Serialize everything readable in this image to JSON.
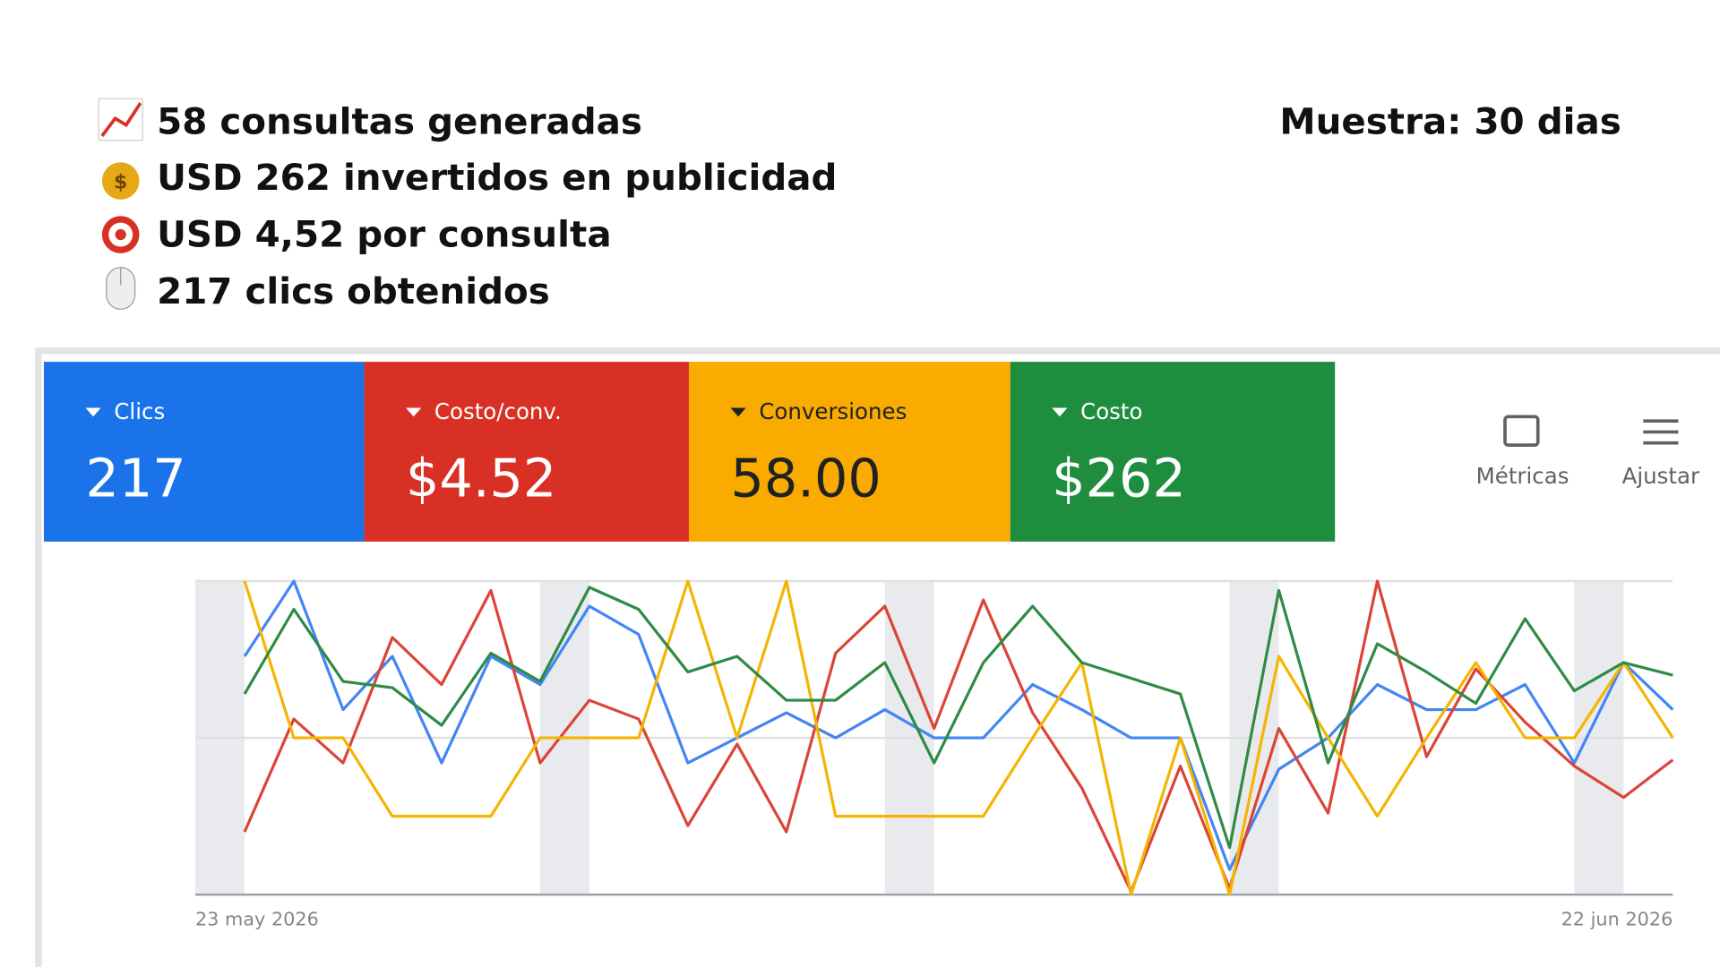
{
  "header": {
    "lines": [
      "58 consultas generadas",
      "USD 262 invertidos en publicidad",
      "USD 4,52 por consulta",
      "217 clics obtenidos"
    ],
    "sample": "Muestra: 30 dias"
  },
  "scorecards": [
    "217",
    "$4.52",
    "58.00",
    "$262"
  ],
  "buttons": [
    "Métricas",
    "Ajustar"
  ],
  "chart_data": {
    "type": "line",
    "categories": [
      "23 may 2026",
      null,
      null,
      null,
      null,
      null,
      null,
      null,
      null,
      null,
      null,
      null,
      null,
      null,
      null,
      null,
      null,
      null,
      null,
      null,
      null,
      null,
      null,
      null,
      null,
      null,
      null,
      null,
      null,
      "22 jun 2026"
    ],
    "ylim": [
      0,
      100
    ],
    "series": [
      {
        "name": "Clics",
        "color": "#4285f4",
        "values": [
          76,
          100,
          59,
          76,
          42,
          76,
          67,
          92,
          83,
          42,
          50,
          58,
          50,
          59,
          50,
          50,
          67,
          59,
          50,
          50,
          8,
          40,
          50,
          67,
          59,
          59,
          67,
          42,
          74,
          59
        ]
      },
      {
        "name": "Costo/conv.",
        "color": "#db4437",
        "values": [
          20,
          56,
          42,
          82,
          67,
          97,
          42,
          62,
          56,
          22,
          48,
          20,
          77,
          92,
          53,
          94,
          58,
          34,
          1,
          41,
          2,
          53,
          26,
          100,
          44,
          72,
          55,
          41,
          31,
          43
        ]
      },
      {
        "name": "Conversiones",
        "color": "#f4b400",
        "values": [
          100,
          50,
          50,
          25,
          25,
          25,
          50,
          50,
          50,
          100,
          50,
          100,
          25,
          25,
          25,
          25,
          50,
          74,
          0,
          50,
          0,
          76,
          50,
          25,
          50,
          74,
          50,
          50,
          74,
          50
        ]
      },
      {
        "name": "Costo",
        "color": "#2e8b45",
        "values": [
          64,
          91,
          68,
          66,
          54,
          77,
          68,
          98,
          91,
          71,
          76,
          62,
          62,
          74,
          42,
          74,
          92,
          74,
          69,
          64,
          15,
          97,
          42,
          80,
          71,
          61,
          88,
          65,
          74,
          70
        ]
      }
    ],
    "card_colors": [
      "#1a73e8",
      "#d93025",
      "#f9ab00",
      "#1e8e3e"
    ]
  }
}
